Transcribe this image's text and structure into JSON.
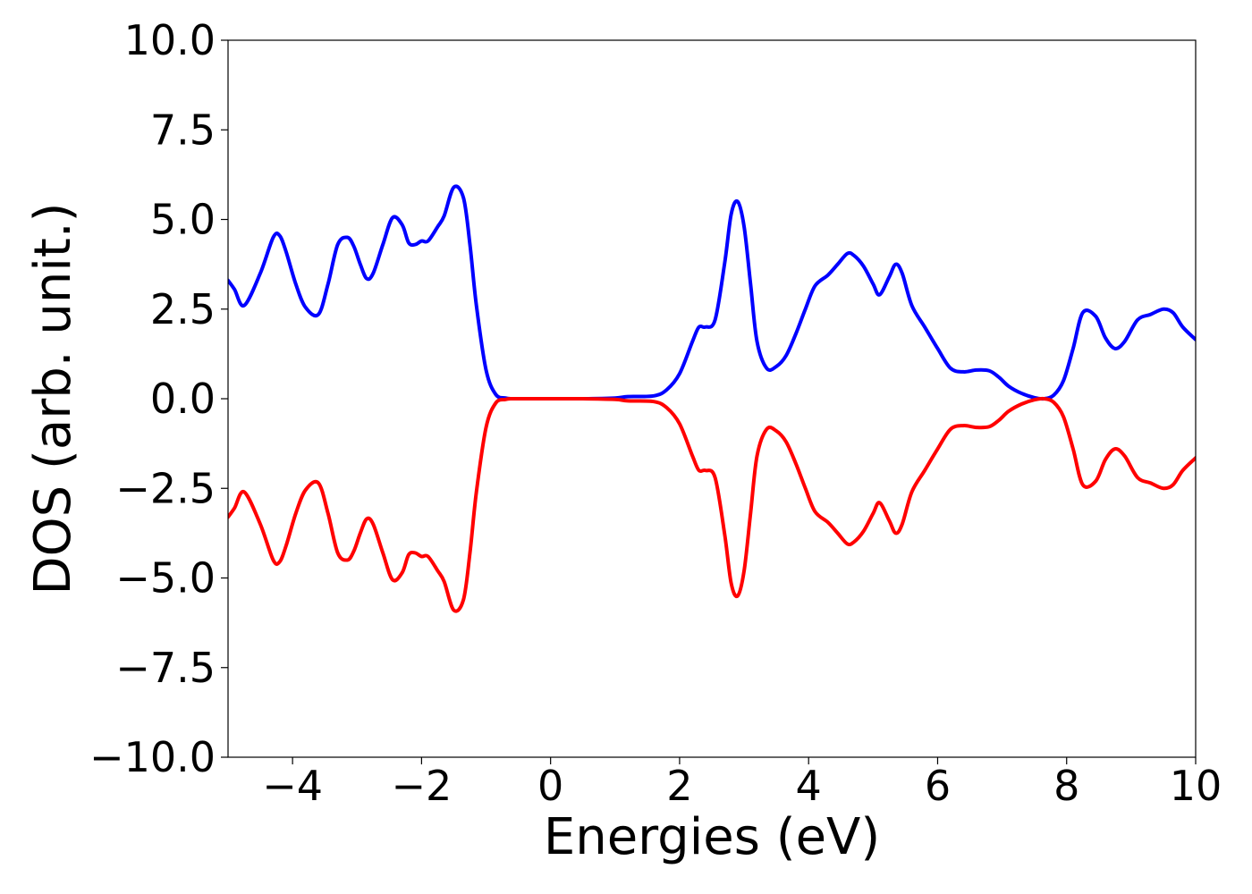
{
  "chart_data": {
    "type": "line",
    "title": "",
    "xlabel": "Energies (eV)",
    "ylabel": "DOS (arb. unit.)",
    "xlim": [
      -5,
      10
    ],
    "ylim": [
      -10,
      10
    ],
    "x_ticks": [
      -4,
      -2,
      0,
      2,
      4,
      6,
      8,
      10
    ],
    "x_tick_labels": [
      "−4",
      "−2",
      "0",
      "2",
      "4",
      "6",
      "8",
      "10"
    ],
    "y_ticks": [
      10,
      7.5,
      5,
      2.5,
      0,
      -2.5,
      -5,
      -7.5,
      -10
    ],
    "y_tick_labels": [
      "10.0",
      "7.5",
      "5.0",
      "2.5",
      "0.0",
      "−2.5",
      "−5.0",
      "−7.5",
      "−10.0"
    ],
    "grid": false,
    "legend": "none",
    "series": [
      {
        "color": "#0000ff",
        "x": [
          -5.0,
          -4.9,
          -4.75,
          -4.5,
          -4.3,
          -4.2,
          -4.1,
          -3.95,
          -3.8,
          -3.6,
          -3.45,
          -3.3,
          -3.15,
          -3.05,
          -2.95,
          -2.85,
          -2.75,
          -2.6,
          -2.45,
          -2.3,
          -2.2,
          -2.1,
          -2.0,
          -1.9,
          -1.75,
          -1.65,
          -1.5,
          -1.35,
          -1.25,
          -1.15,
          -1.0,
          -0.85,
          -0.7,
          -0.6,
          -0.5,
          0.0,
          0.5,
          1.0,
          1.2,
          1.6,
          1.8,
          2.0,
          2.2,
          2.3,
          2.4,
          2.55,
          2.7,
          2.8,
          2.9,
          3.0,
          3.1,
          3.2,
          3.35,
          3.5,
          3.65,
          3.8,
          3.95,
          4.1,
          4.3,
          4.45,
          4.6,
          4.7,
          4.85,
          5.0,
          5.1,
          5.25,
          5.35,
          5.45,
          5.6,
          5.8,
          6.0,
          6.2,
          6.4,
          6.6,
          6.8,
          6.95,
          7.1,
          7.3,
          7.5,
          7.65,
          7.8,
          7.95,
          8.1,
          8.25,
          8.45,
          8.6,
          8.75,
          8.9,
          9.1,
          9.3,
          9.5,
          9.65,
          9.8,
          10.0
        ],
        "values": [
          3.3,
          3.05,
          2.6,
          3.5,
          4.5,
          4.55,
          4.1,
          3.2,
          2.55,
          2.35,
          3.2,
          4.3,
          4.5,
          4.25,
          3.75,
          3.35,
          3.5,
          4.3,
          5.05,
          4.85,
          4.35,
          4.3,
          4.4,
          4.4,
          4.8,
          5.1,
          5.9,
          5.6,
          4.3,
          2.6,
          0.8,
          0.12,
          0.02,
          0.0,
          0.0,
          0.0,
          0.0,
          0.02,
          0.06,
          0.08,
          0.25,
          0.7,
          1.6,
          2.0,
          2.0,
          2.2,
          3.8,
          5.15,
          5.5,
          4.8,
          3.2,
          1.6,
          0.85,
          0.9,
          1.2,
          1.8,
          2.5,
          3.15,
          3.45,
          3.75,
          4.05,
          4.0,
          3.7,
          3.2,
          2.9,
          3.4,
          3.75,
          3.5,
          2.6,
          2.0,
          1.4,
          0.85,
          0.75,
          0.8,
          0.78,
          0.6,
          0.35,
          0.15,
          0.03,
          0.0,
          0.1,
          0.5,
          1.4,
          2.4,
          2.3,
          1.7,
          1.4,
          1.6,
          2.2,
          2.35,
          2.5,
          2.4,
          2.0,
          1.65
        ]
      },
      {
        "color": "#ff0000",
        "x": [
          -5.0,
          -4.9,
          -4.75,
          -4.5,
          -4.3,
          -4.2,
          -4.1,
          -3.95,
          -3.8,
          -3.6,
          -3.45,
          -3.3,
          -3.15,
          -3.05,
          -2.95,
          -2.85,
          -2.75,
          -2.6,
          -2.45,
          -2.3,
          -2.2,
          -2.1,
          -2.0,
          -1.9,
          -1.75,
          -1.65,
          -1.5,
          -1.35,
          -1.25,
          -1.15,
          -1.0,
          -0.85,
          -0.7,
          -0.6,
          -0.5,
          0.0,
          0.5,
          1.0,
          1.2,
          1.6,
          1.8,
          2.0,
          2.2,
          2.3,
          2.4,
          2.55,
          2.7,
          2.8,
          2.9,
          3.0,
          3.1,
          3.2,
          3.35,
          3.5,
          3.65,
          3.8,
          3.95,
          4.1,
          4.3,
          4.45,
          4.6,
          4.7,
          4.85,
          5.0,
          5.1,
          5.25,
          5.35,
          5.45,
          5.6,
          5.8,
          6.0,
          6.2,
          6.4,
          6.6,
          6.8,
          6.95,
          7.1,
          7.3,
          7.5,
          7.65,
          7.8,
          7.95,
          8.1,
          8.25,
          8.45,
          8.6,
          8.75,
          8.9,
          9.1,
          9.3,
          9.5,
          9.65,
          9.8,
          10.0
        ],
        "values": [
          -3.3,
          -3.05,
          -2.6,
          -3.5,
          -4.5,
          -4.55,
          -4.1,
          -3.2,
          -2.55,
          -2.35,
          -3.2,
          -4.3,
          -4.5,
          -4.25,
          -3.75,
          -3.35,
          -3.5,
          -4.3,
          -5.05,
          -4.85,
          -4.35,
          -4.3,
          -4.4,
          -4.4,
          -4.8,
          -5.1,
          -5.9,
          -5.6,
          -4.3,
          -2.6,
          -0.8,
          -0.12,
          -0.02,
          0.0,
          0.0,
          0.0,
          0.0,
          -0.02,
          -0.06,
          -0.08,
          -0.25,
          -0.7,
          -1.6,
          -2.0,
          -2.0,
          -2.2,
          -3.8,
          -5.15,
          -5.5,
          -4.8,
          -3.2,
          -1.6,
          -0.85,
          -0.9,
          -1.2,
          -1.8,
          -2.5,
          -3.15,
          -3.45,
          -3.75,
          -4.05,
          -4.0,
          -3.7,
          -3.2,
          -2.9,
          -3.4,
          -3.75,
          -3.5,
          -2.6,
          -2.0,
          -1.4,
          -0.85,
          -0.75,
          -0.8,
          -0.78,
          -0.6,
          -0.35,
          -0.15,
          -0.03,
          0.0,
          -0.1,
          -0.5,
          -1.4,
          -2.4,
          -2.3,
          -1.7,
          -1.4,
          -1.6,
          -2.2,
          -2.35,
          -2.5,
          -2.4,
          -2.0,
          -1.65
        ]
      }
    ]
  }
}
